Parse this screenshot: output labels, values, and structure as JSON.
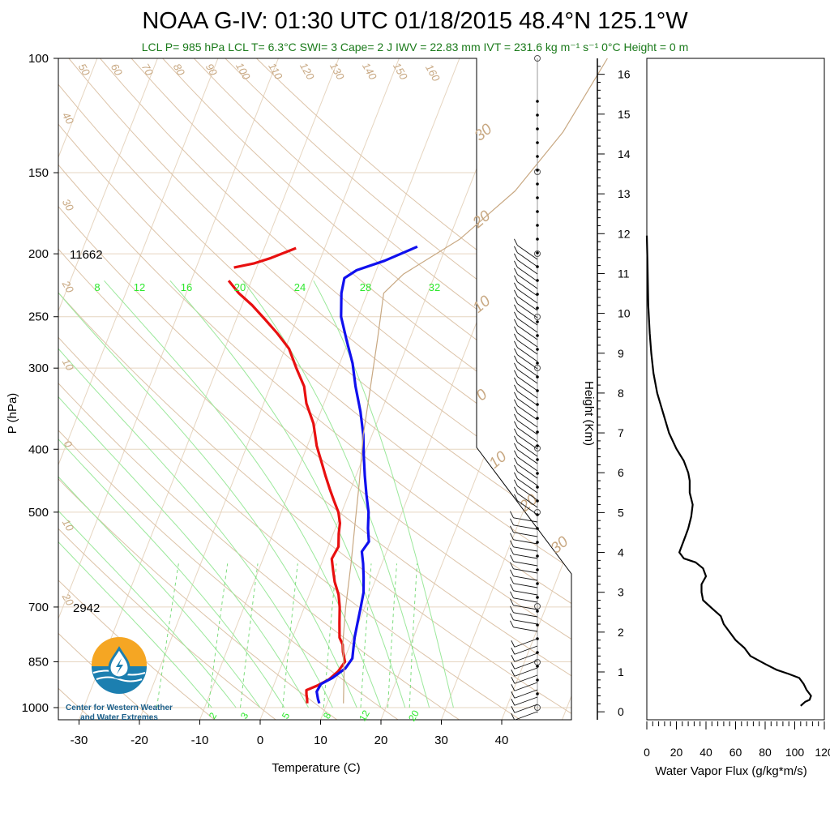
{
  "chart_data": [
    {
      "type": "line",
      "title": "NOAA G-IV: 01:30 UTC 01/18/2015  48.4°N 125.1°W",
      "subtitle": "LCL P= 985 hPa  LCL T= 6.3°C  SWI= 3  Cape= 2 J  IWV = 22.83 mm  IVT = 231.6 kg m⁻¹ s⁻¹  0°C Height = 0 m",
      "xlabel": "Temperature (C)",
      "ylabel": "P (hPa)",
      "x_ticks": [
        "-30",
        "-20",
        "-10",
        "0",
        "10",
        "20",
        "30",
        "40"
      ],
      "y_ticks": [
        "100",
        "150",
        "200",
        "250",
        "300",
        "400",
        "500",
        "700",
        "850",
        "1000"
      ],
      "annotations": [
        "11662",
        "2942"
      ],
      "mixing_ratio_labels_top": [
        "8",
        "12",
        "16",
        "20",
        "24",
        "28",
        "32"
      ],
      "mixing_ratio_labels_bottom": [
        "2",
        "3",
        "5",
        "8",
        "12",
        "20"
      ],
      "series": [
        {
          "color": "#e81010",
          "points": [
            [
              -24.5,
              196
            ],
            [
              -28,
              203
            ],
            [
              -30.5,
              207
            ],
            [
              -33.5,
              210
            ]
          ]
        },
        {
          "color": "#e81010",
          "points": [
            [
              -33.5,
              220
            ],
            [
              -31,
              230
            ],
            [
              -28,
              240
            ],
            [
              -25,
              252
            ],
            [
              -22,
              265
            ],
            [
              -19,
              280
            ],
            [
              -16.5,
              300
            ],
            [
              -14,
              320
            ],
            [
              -12.5,
              340
            ],
            [
              -10,
              365
            ],
            [
              -8,
              395
            ],
            [
              -6,
              420
            ],
            [
              -4.5,
              440
            ],
            [
              -3,
              460
            ],
            [
              -1.5,
              480
            ],
            [
              0,
              500
            ],
            [
              1,
              520
            ],
            [
              1.5,
              540
            ],
            [
              2.3,
              565
            ],
            [
              2,
              590
            ],
            [
              3,
              615
            ],
            [
              4,
              640
            ],
            [
              5.5,
              670
            ],
            [
              6.5,
              700
            ],
            [
              7.5,
              740
            ],
            [
              8.5,
              780
            ],
            [
              9.5,
              800
            ],
            [
              10,
              820
            ],
            [
              11,
              850
            ],
            [
              10.5,
              880
            ],
            [
              9.5,
              905
            ],
            [
              8,
              925
            ],
            [
              6.5,
              940
            ],
            [
              6.8,
              955
            ],
            [
              7.2,
              970
            ],
            [
              7.5,
              985
            ]
          ]
        },
        {
          "color": "#1010ee",
          "points": [
            [
              -4.5,
              195
            ],
            [
              -9,
              205
            ],
            [
              -13,
              212
            ],
            [
              -14.5,
              218
            ],
            [
              -14,
              230
            ],
            [
              -12.5,
              250
            ],
            [
              -10,
              272
            ],
            [
              -7.5,
              295
            ],
            [
              -5.5,
              320
            ],
            [
              -3,
              350
            ],
            [
              -1,
              380
            ],
            [
              0.5,
              410
            ],
            [
              2,
              440
            ],
            [
              3.5,
              470
            ],
            [
              5,
              500
            ],
            [
              6,
              530
            ],
            [
              7,
              555
            ],
            [
              6.5,
              575
            ],
            [
              7.5,
              600
            ],
            [
              8.5,
              630
            ],
            [
              9.5,
              665
            ],
            [
              10,
              700
            ],
            [
              10.5,
              740
            ],
            [
              11,
              780
            ],
            [
              11.5,
              810
            ],
            [
              12,
              840
            ],
            [
              11.5,
              870
            ],
            [
              10,
              900
            ],
            [
              8.5,
              920
            ],
            [
              8.3,
              945
            ],
            [
              9,
              970
            ],
            [
              9.5,
              985
            ]
          ]
        },
        {
          "color": "#c8a882",
          "points": [
            [
              14.5,
              100
            ],
            [
              12,
              130
            ],
            [
              8,
              160
            ],
            [
              2,
              190
            ],
            [
              -5,
              215
            ],
            [
              -7,
              230
            ],
            [
              -5,
              270
            ],
            [
              -3,
              320
            ],
            [
              -1,
              380
            ],
            [
              1.5,
              450
            ],
            [
              3.5,
              520
            ],
            [
              5.5,
              600
            ],
            [
              7.5,
              700
            ],
            [
              9.5,
              800
            ],
            [
              11.5,
              880
            ],
            [
              13.5,
              985
            ]
          ]
        }
      ],
      "xlim": [
        -35,
        50
      ],
      "ylim": [
        1000,
        100
      ]
    },
    {
      "type": "line",
      "xlabel": "Water Vapor Flux (g/kg*m/s)",
      "ylabel": "Height (Km)",
      "x_ticks": [
        "0",
        "20",
        "40",
        "60",
        "80",
        "100",
        "120"
      ],
      "y_ticks": [
        "0",
        "1",
        "2",
        "3",
        "4",
        "5",
        "6",
        "7",
        "8",
        "9",
        "10",
        "11",
        "12",
        "13",
        "14",
        "15",
        "16"
      ],
      "xlim": [
        0,
        120
      ],
      "ylim": [
        -0.2,
        16.4
      ],
      "series": [
        {
          "color": "#000000",
          "points": [
            [
              0,
              11.95
            ],
            [
              0.5,
              11.2
            ],
            [
              1,
              10.2
            ],
            [
              2,
              9.5
            ],
            [
              3,
              9.0
            ],
            [
              4.5,
              8.5
            ],
            [
              7,
              8.0
            ],
            [
              11,
              7.5
            ],
            [
              15,
              7.0
            ],
            [
              20,
              6.6
            ],
            [
              25,
              6.3
            ],
            [
              28,
              6.0
            ],
            [
              29,
              5.8
            ],
            [
              29,
              5.5
            ],
            [
              31,
              5.2
            ],
            [
              30,
              4.9
            ],
            [
              28,
              4.6
            ],
            [
              26,
              4.4
            ],
            [
              24,
              4.2
            ],
            [
              22,
              4.0
            ],
            [
              25,
              3.85
            ],
            [
              33,
              3.75
            ],
            [
              38,
              3.6
            ],
            [
              40,
              3.4
            ],
            [
              37,
              3.2
            ],
            [
              37,
              3.0
            ],
            [
              38,
              2.8
            ],
            [
              44,
              2.6
            ],
            [
              50,
              2.4
            ],
            [
              52,
              2.2
            ],
            [
              56,
              2.0
            ],
            [
              60,
              1.8
            ],
            [
              66,
              1.6
            ],
            [
              70,
              1.4
            ],
            [
              80,
              1.2
            ],
            [
              88,
              1.05
            ],
            [
              96,
              0.95
            ],
            [
              103,
              0.85
            ],
            [
              106,
              0.7
            ],
            [
              108,
              0.55
            ],
            [
              111,
              0.4
            ],
            [
              110,
              0.3
            ],
            [
              107,
              0.25
            ],
            [
              104,
              0.15
            ]
          ]
        }
      ]
    }
  ],
  "logo": {
    "line1": "Center for Western Weather",
    "line2": "and Water Extremes"
  }
}
